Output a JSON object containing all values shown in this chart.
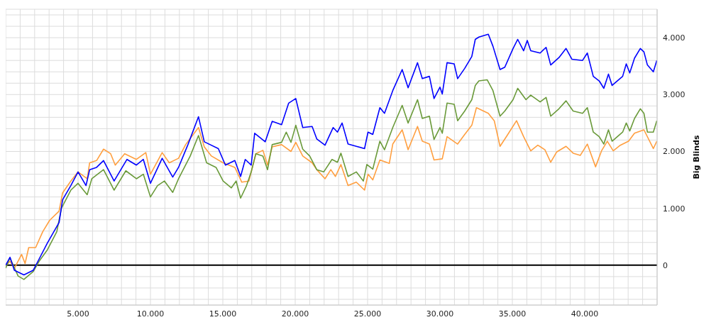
{
  "chart_data": {
    "type": "line",
    "ylabel": "Big Blinds",
    "xlim": [
      0,
      45000
    ],
    "ylim": [
      -700,
      4500
    ],
    "xticks": [
      {
        "value": 0,
        "label": null
      },
      {
        "value": 1000,
        "label": null
      },
      {
        "value": 2000,
        "label": null
      },
      {
        "value": 3000,
        "label": null
      },
      {
        "value": 4000,
        "label": null
      },
      {
        "value": 5000,
        "label": "5.000"
      },
      {
        "value": 6000,
        "label": null
      },
      {
        "value": 7000,
        "label": null
      },
      {
        "value": 8000,
        "label": null
      },
      {
        "value": 9000,
        "label": null
      },
      {
        "value": 10000,
        "label": "10.000"
      },
      {
        "value": 11000,
        "label": null
      },
      {
        "value": 12000,
        "label": null
      },
      {
        "value": 13000,
        "label": null
      },
      {
        "value": 14000,
        "label": null
      },
      {
        "value": 15000,
        "label": "15.000"
      },
      {
        "value": 16000,
        "label": null
      },
      {
        "value": 17000,
        "label": null
      },
      {
        "value": 18000,
        "label": null
      },
      {
        "value": 19000,
        "label": null
      },
      {
        "value": 20000,
        "label": "20.000"
      },
      {
        "value": 21000,
        "label": null
      },
      {
        "value": 22000,
        "label": null
      },
      {
        "value": 23000,
        "label": null
      },
      {
        "value": 24000,
        "label": null
      },
      {
        "value": 25000,
        "label": "25.000"
      },
      {
        "value": 26000,
        "label": null
      },
      {
        "value": 27000,
        "label": null
      },
      {
        "value": 28000,
        "label": null
      },
      {
        "value": 29000,
        "label": null
      },
      {
        "value": 30000,
        "label": "30.000"
      },
      {
        "value": 31000,
        "label": null
      },
      {
        "value": 32000,
        "label": null
      },
      {
        "value": 33000,
        "label": null
      },
      {
        "value": 34000,
        "label": null
      },
      {
        "value": 35000,
        "label": "35.000"
      },
      {
        "value": 36000,
        "label": null
      },
      {
        "value": 37000,
        "label": null
      },
      {
        "value": 38000,
        "label": null
      },
      {
        "value": 39000,
        "label": null
      },
      {
        "value": 40000,
        "label": "40.000"
      },
      {
        "value": 41000,
        "label": null
      },
      {
        "value": 42000,
        "label": null
      },
      {
        "value": 43000,
        "label": null
      },
      {
        "value": 44000,
        "label": null
      }
    ],
    "yticks": [
      {
        "value": -600,
        "label": null
      },
      {
        "value": -400,
        "label": null
      },
      {
        "value": -200,
        "label": null
      },
      0,
      {
        "value": 200,
        "label": null
      },
      {
        "value": 400,
        "label": null
      },
      {
        "value": 600,
        "label": null
      },
      {
        "value": 800,
        "label": null
      },
      {
        "value": 1000,
        "label": "1.000"
      },
      {
        "value": 1200,
        "label": null
      },
      {
        "value": 1400,
        "label": null
      },
      {
        "value": 1600,
        "label": null
      },
      {
        "value": 1800,
        "label": null
      },
      {
        "value": 2000,
        "label": "2.000"
      },
      {
        "value": 2200,
        "label": null
      },
      {
        "value": 2400,
        "label": null
      },
      {
        "value": 2600,
        "label": null
      },
      {
        "value": 2800,
        "label": null
      },
      {
        "value": 3000,
        "label": "3.000"
      },
      {
        "value": 3200,
        "label": null
      },
      {
        "value": 3400,
        "label": null
      },
      {
        "value": 3600,
        "label": null
      },
      {
        "value": 3800,
        "label": null
      },
      {
        "value": 4000,
        "label": "4.000"
      },
      {
        "value": 4200,
        "label": null
      },
      {
        "value": 4400,
        "label": null
      }
    ],
    "grid": true,
    "legend": false,
    "marker": "none",
    "line_style": "solid",
    "ref_lines": [
      {
        "axis": "y",
        "value": 0,
        "color": "#000000"
      }
    ],
    "series": [
      {
        "color": "#ff9f40",
        "x": [
          0,
          290,
          610,
          1100,
          1340,
          1590,
          2070,
          2560,
          3040,
          3690,
          3930,
          4500,
          5000,
          5630,
          5800,
          6280,
          6760,
          7250,
          7570,
          8220,
          9030,
          9680,
          10000,
          10810,
          11300,
          11940,
          12430,
          13320,
          13720,
          14210,
          15020,
          15830,
          16310,
          16800,
          17280,
          17770,
          18090,
          18410,
          19060,
          19710,
          20040,
          20520,
          21170,
          21490,
          22060,
          22460,
          22780,
          23160,
          23650,
          24220,
          24790,
          25030,
          25360,
          25850,
          26500,
          26740,
          27390,
          27800,
          28450,
          28780,
          29270,
          29590,
          30160,
          30490,
          31220,
          31710,
          32200,
          32520,
          33340,
          33750,
          34150,
          34640,
          35290,
          35780,
          36270,
          36760,
          37250,
          37650,
          38060,
          38710,
          39200,
          39690,
          40180,
          40750,
          41160,
          41560,
          41970,
          42460,
          43030,
          43440,
          44090,
          44740,
          44980
        ],
        "values": [
          -10,
          70,
          -50,
          190,
          30,
          310,
          310,
          590,
          790,
          950,
          1270,
          1480,
          1640,
          1520,
          1800,
          1840,
          2040,
          1960,
          1760,
          1960,
          1860,
          1980,
          1600,
          1980,
          1800,
          1880,
          2120,
          2420,
          2080,
          1920,
          1800,
          1720,
          1460,
          1480,
          1960,
          2020,
          1760,
          2080,
          2120,
          2000,
          2160,
          1920,
          1800,
          1680,
          1520,
          1680,
          1560,
          1770,
          1400,
          1460,
          1320,
          1600,
          1500,
          1850,
          1790,
          2130,
          2380,
          2030,
          2440,
          2180,
          2130,
          1850,
          1870,
          2260,
          2130,
          2300,
          2460,
          2770,
          2670,
          2540,
          2090,
          2280,
          2540,
          2260,
          2010,
          2110,
          2030,
          1810,
          1990,
          2090,
          1970,
          1930,
          2130,
          1730,
          2010,
          2180,
          2010,
          2110,
          2180,
          2320,
          2380,
          2050,
          2180
        ]
      },
      {
        "color": "#6a9a3a",
        "x": [
          0,
          290,
          860,
          1260,
          1910,
          2310,
          2880,
          3530,
          3850,
          4500,
          5000,
          5630,
          5950,
          6760,
          7490,
          8300,
          9030,
          9510,
          10000,
          10490,
          10970,
          11540,
          11940,
          12750,
          13320,
          13880,
          14530,
          15020,
          15590,
          15920,
          16230,
          16640,
          16960,
          17280,
          17770,
          18090,
          18410,
          19060,
          19380,
          19710,
          20040,
          20520,
          21000,
          21490,
          21970,
          22540,
          22920,
          23160,
          23650,
          24220,
          24710,
          24950,
          25360,
          25850,
          26170,
          26740,
          27390,
          27800,
          28450,
          28780,
          29270,
          29590,
          30000,
          30160,
          30490,
          30980,
          31220,
          31710,
          32200,
          32440,
          32690,
          33260,
          33660,
          34150,
          34480,
          35050,
          35370,
          35940,
          36270,
          36920,
          37330,
          37650,
          38220,
          38710,
          39200,
          39850,
          40180,
          40590,
          41000,
          41320,
          41640,
          41890,
          42620,
          42870,
          43110,
          43440,
          43840,
          44090,
          44330,
          44740,
          44980
        ],
        "values": [
          -50,
          130,
          -190,
          -250,
          -110,
          70,
          270,
          590,
          1000,
          1320,
          1440,
          1240,
          1520,
          1680,
          1320,
          1660,
          1520,
          1600,
          1200,
          1400,
          1480,
          1280,
          1520,
          1920,
          2280,
          1800,
          1720,
          1480,
          1360,
          1480,
          1180,
          1400,
          1640,
          1960,
          1920,
          1680,
          2120,
          2160,
          2340,
          2160,
          2460,
          2040,
          1920,
          1680,
          1640,
          1860,
          1810,
          1970,
          1560,
          1640,
          1480,
          1770,
          1690,
          2180,
          2030,
          2420,
          2810,
          2500,
          2910,
          2580,
          2620,
          2210,
          2420,
          2320,
          2850,
          2830,
          2540,
          2710,
          2910,
          3160,
          3240,
          3260,
          3070,
          2620,
          2710,
          2910,
          3110,
          2910,
          2990,
          2870,
          2950,
          2620,
          2750,
          2890,
          2710,
          2670,
          2770,
          2340,
          2260,
          2130,
          2380,
          2180,
          2340,
          2500,
          2360,
          2580,
          2750,
          2670,
          2340,
          2340,
          2540
        ]
      },
      {
        "color": "#0000ff",
        "x": [
          0,
          300,
          600,
          1260,
          1900,
          2230,
          2880,
          3690,
          3930,
          4500,
          5000,
          5550,
          5800,
          6280,
          6760,
          7490,
          8380,
          9030,
          9510,
          10000,
          10810,
          11540,
          11940,
          12590,
          13320,
          13720,
          14690,
          15180,
          15830,
          16230,
          16550,
          16960,
          17200,
          17930,
          18410,
          19060,
          19550,
          20040,
          20520,
          21170,
          21490,
          22060,
          22620,
          22920,
          23240,
          23650,
          24220,
          24790,
          25030,
          25360,
          25850,
          26170,
          26740,
          27390,
          27800,
          28450,
          28780,
          29270,
          29590,
          30000,
          30160,
          30490,
          30980,
          31220,
          31710,
          32200,
          32440,
          32690,
          33340,
          33660,
          34150,
          34480,
          35050,
          35370,
          35780,
          36030,
          36270,
          36920,
          37330,
          37650,
          38220,
          38710,
          39120,
          39850,
          40180,
          40590,
          41000,
          41320,
          41640,
          41890,
          42620,
          42870,
          43110,
          43440,
          43840,
          44090,
          44330,
          44740,
          44980
        ],
        "values": [
          0,
          140,
          -90,
          -170,
          -90,
          70,
          390,
          750,
          1150,
          1400,
          1640,
          1400,
          1680,
          1720,
          1840,
          1480,
          1860,
          1760,
          1860,
          1440,
          1880,
          1550,
          1720,
          2120,
          2610,
          2170,
          2050,
          1760,
          1840,
          1560,
          1860,
          1760,
          2320,
          2170,
          2530,
          2470,
          2850,
          2930,
          2420,
          2440,
          2220,
          2110,
          2420,
          2340,
          2500,
          2130,
          2090,
          2050,
          2340,
          2300,
          2770,
          2670,
          3070,
          3440,
          3120,
          3560,
          3280,
          3320,
          2930,
          3130,
          3010,
          3560,
          3540,
          3280,
          3460,
          3670,
          3970,
          4010,
          4060,
          3850,
          3440,
          3480,
          3810,
          3970,
          3770,
          3950,
          3770,
          3730,
          3830,
          3520,
          3650,
          3810,
          3620,
          3600,
          3730,
          3320,
          3240,
          3110,
          3360,
          3160,
          3320,
          3540,
          3380,
          3640,
          3810,
          3750,
          3520,
          3400,
          3600
        ]
      }
    ]
  }
}
